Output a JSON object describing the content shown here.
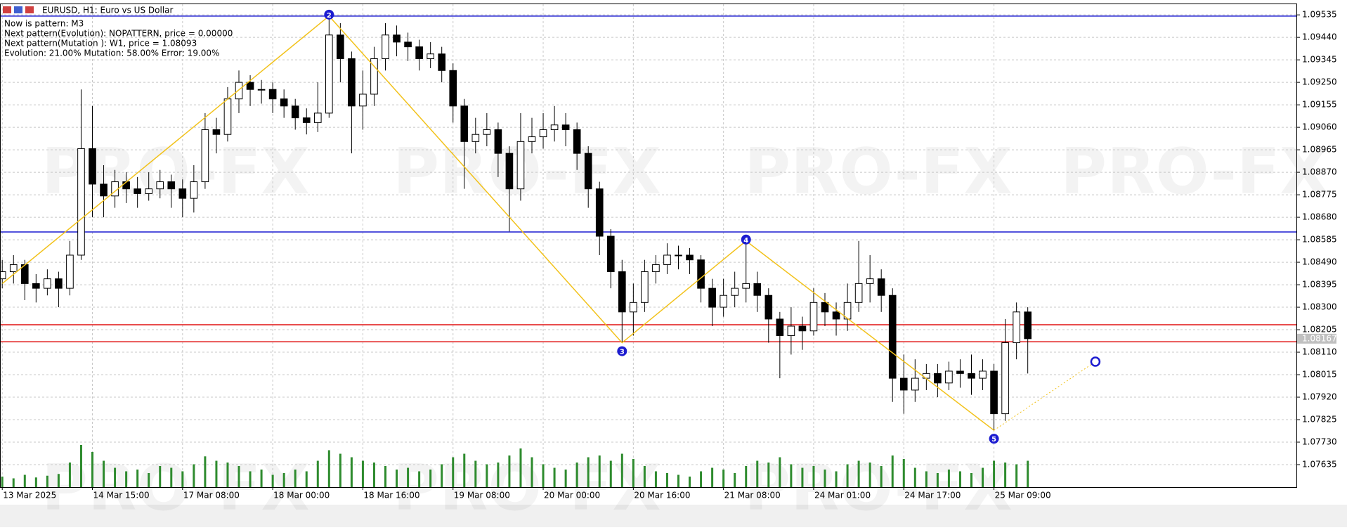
{
  "chart_data": {
    "type": "candlestick",
    "title": "EURUSD, H1:  Euro vs US Dollar",
    "annotations": [
      "Now is pattern: M3",
      "Next pattern(Evolution): NOPATTERN, price = 0.00000",
      "Next pattern(Mutation ): W1, price = 1.08093",
      "Evolution: 21.00% Mutation: 58.00% Error: 19.00%"
    ],
    "watermark": "PRO-FX",
    "categories": [
      "13 Mar 2025",
      null,
      null,
      null,
      null,
      null,
      null,
      null,
      "14 Mar 15:00",
      null,
      null,
      null,
      null,
      null,
      null,
      null,
      "17 Mar 08:00",
      null,
      null,
      null,
      null,
      null,
      null,
      null,
      "18 Mar 00:00",
      null,
      null,
      null,
      null,
      null,
      null,
      null,
      "18 Mar 16:00",
      null,
      null,
      null,
      null,
      null,
      null,
      null,
      "19 Mar 08:00",
      null,
      null,
      null,
      null,
      null,
      null,
      null,
      "20 Mar 00:00",
      null,
      null,
      null,
      null,
      null,
      null,
      null,
      "20 Mar 16:00",
      null,
      null,
      null,
      null,
      null,
      null,
      null,
      "21 Mar 08:00",
      null,
      null,
      null,
      null,
      null,
      null,
      null,
      "24 Mar 01:00",
      null,
      null,
      null,
      null,
      null,
      null,
      null,
      "24 Mar 17:00",
      null,
      null,
      null,
      null,
      null,
      null,
      null,
      "25 Mar 09:00",
      null,
      null,
      null
    ],
    "candles": [
      [
        1.0842,
        1.085,
        1.0838,
        1.0845
      ],
      [
        1.0845,
        1.0852,
        1.084,
        1.0848
      ],
      [
        1.0848,
        1.085,
        1.0833,
        1.084
      ],
      [
        1.084,
        1.0844,
        1.0832,
        1.0838
      ],
      [
        1.0838,
        1.0846,
        1.0835,
        1.0842
      ],
      [
        1.0842,
        1.0845,
        1.083,
        1.0838
      ],
      [
        1.0838,
        1.0858,
        1.0835,
        1.0852
      ],
      [
        1.0852,
        1.0922,
        1.085,
        1.0897
      ],
      [
        1.0897,
        1.0915,
        1.0868,
        1.0882
      ],
      [
        1.0882,
        1.089,
        1.0868,
        1.0877
      ],
      [
        1.0877,
        1.0888,
        1.0872,
        1.0883
      ],
      [
        1.0883,
        1.0887,
        1.0874,
        1.088
      ],
      [
        1.088,
        1.0885,
        1.0872,
        1.0878
      ],
      [
        1.0878,
        1.0887,
        1.0875,
        1.088
      ],
      [
        1.088,
        1.0888,
        1.0876,
        1.0883
      ],
      [
        1.0883,
        1.0886,
        1.0872,
        1.088
      ],
      [
        1.088,
        1.0884,
        1.0868,
        1.0876
      ],
      [
        1.0876,
        1.089,
        1.087,
        1.0883
      ],
      [
        1.0883,
        1.0912,
        1.088,
        1.0905
      ],
      [
        1.0905,
        1.091,
        1.0895,
        1.0903
      ],
      [
        1.0903,
        1.0923,
        1.09,
        1.0918
      ],
      [
        1.0918,
        1.093,
        1.0912,
        1.0925
      ],
      [
        1.0925,
        1.0928,
        1.0915,
        1.0922
      ],
      [
        1.0922,
        1.0926,
        1.0916,
        1.0922
      ],
      [
        1.0922,
        1.0925,
        1.0912,
        1.0918
      ],
      [
        1.0918,
        1.0922,
        1.091,
        1.0915
      ],
      [
        1.0915,
        1.0918,
        1.0905,
        1.091
      ],
      [
        1.091,
        1.0914,
        1.0903,
        1.0908
      ],
      [
        1.0908,
        1.0925,
        1.0904,
        1.0912
      ],
      [
        1.0912,
        1.0953,
        1.091,
        1.0945
      ],
      [
        1.0945,
        1.095,
        1.0925,
        1.0935
      ],
      [
        1.0935,
        1.0938,
        1.0895,
        1.0915
      ],
      [
        1.0915,
        1.093,
        1.0905,
        1.092
      ],
      [
        1.092,
        1.094,
        1.0915,
        1.0935
      ],
      [
        1.0935,
        1.095,
        1.093,
        1.0945
      ],
      [
        1.0945,
        1.0949,
        1.0936,
        1.0942
      ],
      [
        1.0942,
        1.0946,
        1.0934,
        1.094
      ],
      [
        1.094,
        1.0943,
        1.093,
        1.0935
      ],
      [
        1.0935,
        1.0942,
        1.0931,
        1.0937
      ],
      [
        1.0937,
        1.094,
        1.0925,
        1.093
      ],
      [
        1.093,
        1.0933,
        1.0908,
        1.0915
      ],
      [
        1.0915,
        1.0918,
        1.088,
        1.09
      ],
      [
        1.09,
        1.091,
        1.0895,
        1.0903
      ],
      [
        1.0903,
        1.0912,
        1.0898,
        1.0905
      ],
      [
        1.0905,
        1.0908,
        1.0885,
        1.0895
      ],
      [
        1.0895,
        1.0898,
        1.0862,
        1.088
      ],
      [
        1.088,
        1.0912,
        1.0875,
        1.09
      ],
      [
        1.09,
        1.091,
        1.0895,
        1.0902
      ],
      [
        1.0902,
        1.0912,
        1.0897,
        1.0905
      ],
      [
        1.0905,
        1.0915,
        1.09,
        1.0907
      ],
      [
        1.0907,
        1.0912,
        1.0898,
        1.0905
      ],
      [
        1.0905,
        1.0908,
        1.0888,
        1.0895
      ],
      [
        1.0895,
        1.0898,
        1.0872,
        1.088
      ],
      [
        1.088,
        1.0883,
        1.0852,
        1.086
      ],
      [
        1.086,
        1.0863,
        1.0838,
        1.0845
      ],
      [
        1.0845,
        1.085,
        1.0815,
        1.0828
      ],
      [
        1.0828,
        1.084,
        1.0818,
        1.0832
      ],
      [
        1.0832,
        1.085,
        1.0828,
        1.0845
      ],
      [
        1.0845,
        1.0852,
        1.084,
        1.0848
      ],
      [
        1.0848,
        1.0857,
        1.0844,
        1.0852
      ],
      [
        1.0852,
        1.0856,
        1.0846,
        1.0852
      ],
      [
        1.0852,
        1.0855,
        1.0844,
        1.085
      ],
      [
        1.085,
        1.0852,
        1.0832,
        1.0838
      ],
      [
        1.0838,
        1.0842,
        1.0822,
        1.083
      ],
      [
        1.083,
        1.0842,
        1.0826,
        1.0835
      ],
      [
        1.0835,
        1.0845,
        1.083,
        1.0838
      ],
      [
        1.0838,
        1.0858,
        1.0832,
        1.084
      ],
      [
        1.084,
        1.0845,
        1.0828,
        1.0835
      ],
      [
        1.0835,
        1.0838,
        1.0815,
        1.0825
      ],
      [
        1.0825,
        1.0828,
        1.08,
        1.0818
      ],
      [
        1.0818,
        1.083,
        1.081,
        1.0822
      ],
      [
        1.0822,
        1.0826,
        1.0812,
        1.082
      ],
      [
        1.082,
        1.0838,
        1.0818,
        1.0832
      ],
      [
        1.0832,
        1.0836,
        1.0822,
        1.0828
      ],
      [
        1.0828,
        1.0832,
        1.0818,
        1.0825
      ],
      [
        1.0825,
        1.084,
        1.082,
        1.0832
      ],
      [
        1.0832,
        1.0858,
        1.0828,
        1.084
      ],
      [
        1.084,
        1.0852,
        1.0832,
        1.0842
      ],
      [
        1.0842,
        1.0846,
        1.0828,
        1.0835
      ],
      [
        1.0835,
        1.0838,
        1.079,
        1.08
      ],
      [
        1.08,
        1.081,
        1.0785,
        1.0795
      ],
      [
        1.0795,
        1.0808,
        1.079,
        1.08
      ],
      [
        1.08,
        1.0806,
        1.0795,
        1.0802
      ],
      [
        1.0802,
        1.0806,
        1.0792,
        1.0798
      ],
      [
        1.0798,
        1.0807,
        1.0795,
        1.0803
      ],
      [
        1.0803,
        1.0808,
        1.0796,
        1.0802
      ],
      [
        1.0802,
        1.081,
        1.0793,
        1.08
      ],
      [
        1.08,
        1.0808,
        1.0795,
        1.0803
      ],
      [
        1.0803,
        1.0806,
        1.0778,
        1.0785
      ],
      [
        1.0785,
        1.0825,
        1.0782,
        1.0815
      ],
      [
        1.0815,
        1.0832,
        1.0808,
        1.0828
      ],
      [
        1.0828,
        1.083,
        1.0802,
        1.08167
      ]
    ],
    "volumes": [
      12,
      10,
      14,
      11,
      13,
      15,
      28,
      48,
      40,
      30,
      22,
      18,
      20,
      16,
      24,
      22,
      18,
      26,
      35,
      30,
      28,
      24,
      18,
      20,
      14,
      16,
      20,
      18,
      30,
      42,
      38,
      34,
      30,
      28,
      24,
      20,
      22,
      18,
      20,
      26,
      34,
      38,
      30,
      26,
      28,
      36,
      44,
      34,
      26,
      22,
      20,
      28,
      34,
      36,
      30,
      38,
      32,
      24,
      18,
      16,
      14,
      12,
      18,
      22,
      20,
      16,
      24,
      30,
      28,
      34,
      26,
      22,
      24,
      20,
      18,
      26,
      30,
      28,
      24,
      36,
      32,
      22,
      18,
      16,
      20,
      18,
      16,
      22,
      30,
      28,
      26,
      30
    ],
    "bull_color": "#ffffff",
    "bear_color": "#000000",
    "volume_color": "#2e8b2e",
    "current_price": 1.08167,
    "levels": [
      {
        "price": 1.0953,
        "color": "#1c1cd0"
      },
      {
        "price": 1.08618,
        "color": "#1c1cd0"
      },
      {
        "price": 1.08226,
        "color": "#e01010"
      },
      {
        "price": 1.08154,
        "color": "#e01010"
      }
    ],
    "zigzag": [
      {
        "x": 0,
        "price": 1.084
      },
      {
        "x": 29,
        "price": 1.0953,
        "label": "2"
      },
      {
        "x": 55,
        "price": 1.0815,
        "label": "3"
      },
      {
        "x": 66,
        "price": 1.0858,
        "label": "4"
      },
      {
        "x": 88,
        "price": 1.0778,
        "label": "5"
      }
    ],
    "forecast": {
      "x": 97,
      "price": 1.0807
    },
    "zigzag_color": "#f2c21b",
    "xlim": [
      -0.2,
      114.9
    ],
    "ylim": [
      1.0754,
      1.0958
    ],
    "yticks": [
      {
        "value": 1.09535,
        "label": "1.09535"
      },
      {
        "value": 1.0944,
        "label": "1.09440"
      },
      {
        "value": 1.09345,
        "label": "1.09345"
      },
      {
        "value": 1.0925,
        "label": "1.09250"
      },
      {
        "value": 1.09155,
        "label": "1.09155"
      },
      {
        "value": 1.0906,
        "label": "1.09060"
      },
      {
        "value": 1.08965,
        "label": "1.08965"
      },
      {
        "value": 1.0887,
        "label": "1.08870"
      },
      {
        "value": 1.08775,
        "label": "1.08775"
      },
      {
        "value": 1.0868,
        "label": "1.08680"
      },
      {
        "value": 1.08585,
        "label": "1.08585"
      },
      {
        "value": 1.0849,
        "label": "1.08490"
      },
      {
        "value": 1.08395,
        "label": "1.08395"
      },
      {
        "value": 1.083,
        "label": "1.08300"
      },
      {
        "value": 1.08205,
        "label": "1.08205"
      },
      {
        "value": 1.0811,
        "label": "1.08110"
      },
      {
        "value": 1.08015,
        "label": "1.08015"
      },
      {
        "value": 1.0792,
        "label": "1.07920"
      },
      {
        "value": 1.07825,
        "label": "1.07825"
      },
      {
        "value": 1.0773,
        "label": "1.07730"
      },
      {
        "value": 1.07635,
        "label": "1.07635"
      }
    ],
    "grid": true
  }
}
